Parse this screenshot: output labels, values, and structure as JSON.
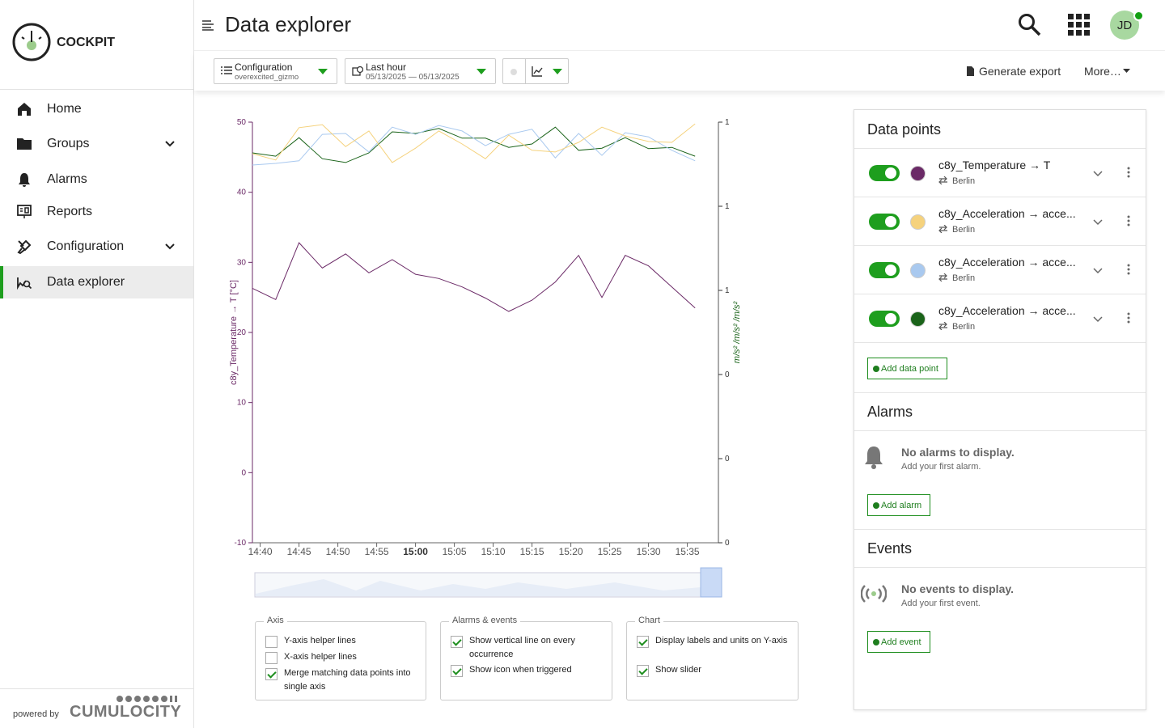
{
  "sidebar": {
    "brand": "COCKPIT",
    "nav": [
      {
        "label": "Home",
        "expandable": false,
        "active": false
      },
      {
        "label": "Groups",
        "expandable": true,
        "active": false
      },
      {
        "label": "Alarms",
        "expandable": false,
        "active": false
      },
      {
        "label": "Reports",
        "expandable": false,
        "active": false
      },
      {
        "label": "Configuration",
        "expandable": true,
        "active": false
      },
      {
        "label": "Data explorer",
        "expandable": false,
        "active": true
      }
    ],
    "powered_by": "powered by",
    "vendor": "CUMULOCITY"
  },
  "header": {
    "title": "Data explorer",
    "avatar": "JD"
  },
  "toolbar": {
    "config_label": "Configuration",
    "config_value": "overexcited_gizmo",
    "time_label": "Last hour",
    "time_range": "05/13/2025 — 05/13/2025",
    "export": "Generate export",
    "more": "More…"
  },
  "chart_data": {
    "type": "line",
    "x": [
      "14:39",
      "14:42",
      "14:45",
      "14:48",
      "14:51",
      "14:54",
      "14:57",
      "15:00",
      "15:03",
      "15:06",
      "15:09",
      "15:12",
      "15:15",
      "15:18",
      "15:21",
      "15:24",
      "15:27",
      "15:30",
      "15:33",
      "15:36"
    ],
    "xlim": [
      "14:39",
      "15:39"
    ],
    "xticks": [
      "14:40",
      "14:45",
      "14:50",
      "14:55",
      "15:00",
      "15:05",
      "15:10",
      "15:15",
      "15:20",
      "15:25",
      "15:30",
      "15:35"
    ],
    "ylim": [
      -10,
      50
    ],
    "yticks": [
      -10,
      0,
      10,
      20,
      30,
      40,
      50
    ],
    "y2lim": [
      0,
      1
    ],
    "y2ticks": [
      {
        "value": 0,
        "label": "0"
      },
      {
        "value": 0.2,
        "label": "0"
      },
      {
        "value": 0.4,
        "label": "0"
      },
      {
        "value": 0.6,
        "label": "1"
      },
      {
        "value": 0.8,
        "label": "1"
      },
      {
        "value": 1,
        "label": "1"
      }
    ],
    "ylabel": "c8y_Temperature → T [°C]",
    "y2label": "m/s² /m/s² /m/s²",
    "grid": false,
    "series": [
      {
        "name": "c8y_Temperature → T",
        "color": "#6b2a67",
        "values": [
          26.3,
          24.7,
          32.8,
          29.2,
          31.2,
          28.5,
          30.4,
          28.3,
          27.7,
          26.5,
          24.9,
          23.0,
          24.6,
          27.2,
          31.0,
          25.0,
          31.0,
          29.5,
          26.5,
          23.5
        ]
      },
      {
        "name": "c8y_Acceleration → acce...",
        "color": "#f5d27d",
        "axis": "y2",
        "values": [
          0.925,
          0.91,
          0.987,
          0.994,
          0.942,
          0.979,
          0.904,
          0.938,
          0.979,
          0.948,
          0.913,
          0.969,
          0.933,
          0.929,
          0.952,
          0.988,
          0.967,
          0.954,
          0.952,
          0.996
        ]
      },
      {
        "name": "c8y_Acceleration → acce...",
        "color": "#a9c9ef",
        "axis": "y2",
        "values": [
          0.898,
          0.902,
          0.908,
          0.971,
          0.973,
          0.929,
          0.988,
          0.971,
          0.992,
          0.979,
          0.944,
          0.971,
          0.983,
          0.915,
          0.973,
          0.921,
          0.975,
          0.965,
          0.933,
          0.908
        ]
      },
      {
        "name": "c8y_Acceleration → acce...",
        "color": "#1a6319",
        "axis": "y2",
        "values": [
          0.927,
          0.919,
          0.963,
          0.913,
          0.904,
          0.927,
          0.977,
          0.973,
          0.985,
          0.962,
          0.962,
          0.94,
          0.948,
          0.988,
          0.933,
          0.938,
          0.963,
          0.937,
          0.94,
          0.919
        ]
      }
    ]
  },
  "options": [
    {
      "legend": "Axis",
      "items": [
        {
          "label": "Y-axis helper lines",
          "checked": false
        },
        {
          "label": "X-axis helper lines",
          "checked": false
        },
        {
          "label": "Merge matching data points into single axis",
          "checked": true
        }
      ]
    },
    {
      "legend": "Alarms & events",
      "items": [
        {
          "label": "Show vertical line on every occurrence",
          "checked": true
        },
        {
          "label": "Show icon when triggered",
          "checked": true
        }
      ]
    },
    {
      "legend": "Chart",
      "items": [
        {
          "label": "Display labels and units on Y-axis",
          "checked": true
        },
        {
          "label": "Show slider",
          "checked": true
        }
      ]
    }
  ],
  "panel": {
    "data_points_title": "Data points",
    "sources": [
      "Berlin",
      "Berlin",
      "Berlin",
      "Berlin"
    ],
    "add_data_point": "Add data point",
    "alarms_title": "Alarms",
    "alarms_empty": "No alarms to display.",
    "alarms_hint": "Add your first alarm.",
    "add_alarm": "Add alarm",
    "events_title": "Events",
    "events_empty": "No events to display.",
    "events_hint": "Add your first event.",
    "add_event": "Add event"
  }
}
